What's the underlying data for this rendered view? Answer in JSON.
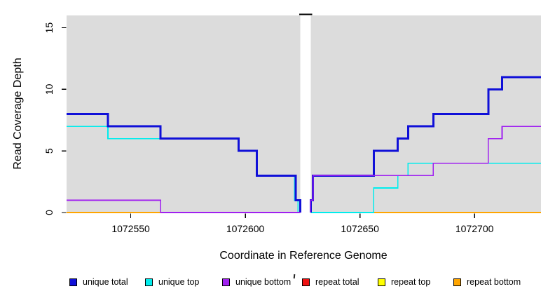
{
  "figure": {
    "x_axis_title": "Coordinate in Reference Genome",
    "y_axis_title": "Read Coverage Depth"
  },
  "chart_data": {
    "type": "line",
    "subtype": "step",
    "title": "",
    "xlabel": "Coordinate in Reference Genome",
    "ylabel": "Read Coverage Depth",
    "xlim": [
      1072522,
      1072729
    ],
    "ylim": [
      0,
      16
    ],
    "x_ticks": [
      1072550,
      1072600,
      1072650,
      1072700
    ],
    "y_ticks": [
      0,
      5,
      10,
      15
    ],
    "grid": false,
    "legend_position": "bottom",
    "plot_background": "#dcdcdc",
    "gap": {
      "x1": 1072624,
      "x2": 1072628.5,
      "marker_color": "#000000"
    },
    "draw_order": [
      "repeat total",
      "repeat top",
      "repeat bottom",
      "unique top",
      "unique total",
      "unique bottom"
    ],
    "series": [
      {
        "name": "unique total",
        "color": "#1010d8",
        "width": 3,
        "segments": [
          [
            [
              1072522,
              8
            ],
            [
              1072540,
              7
            ],
            [
              1072563,
              6
            ],
            [
              1072597,
              5
            ],
            [
              1072605,
              3
            ],
            [
              1072622,
              1
            ],
            [
              1072624,
              0
            ]
          ],
          [
            [
              1072628.5,
              0
            ],
            [
              1072628.5,
              1
            ],
            [
              1072629.5,
              3
            ],
            [
              1072656,
              5
            ],
            [
              1072666.5,
              6
            ],
            [
              1072671,
              7
            ],
            [
              1072682,
              8
            ],
            [
              1072706,
              10
            ],
            [
              1072712,
              11
            ],
            [
              1072729,
              11
            ]
          ]
        ]
      },
      {
        "name": "unique top",
        "color": "#00eded",
        "width": 1.7,
        "segments": [
          [
            [
              1072522,
              7
            ],
            [
              1072540,
              6
            ],
            [
              1072597,
              5
            ],
            [
              1072605,
              3
            ],
            [
              1072621.5,
              1
            ],
            [
              1072623,
              0
            ],
            [
              1072624,
              0
            ]
          ],
          [
            [
              1072628.5,
              0
            ],
            [
              1072656,
              2
            ],
            [
              1072666.5,
              3
            ],
            [
              1072671,
              4
            ],
            [
              1072729,
              4
            ]
          ]
        ]
      },
      {
        "name": "unique bottom",
        "color": "#a020f0",
        "width": 1.7,
        "segments": [
          [
            [
              1072522,
              1
            ],
            [
              1072563,
              0
            ],
            [
              1072624,
              0
            ]
          ],
          [
            [
              1072628.5,
              0
            ],
            [
              1072628.5,
              1
            ],
            [
              1072629.5,
              3
            ],
            [
              1072682,
              4
            ],
            [
              1072706,
              6
            ],
            [
              1072712,
              7
            ],
            [
              1072729,
              7
            ]
          ]
        ]
      },
      {
        "name": "repeat total",
        "color": "#ee1111",
        "width": 1.7,
        "segments": [
          [
            [
              1072522,
              0
            ],
            [
              1072624,
              0
            ]
          ],
          [
            [
              1072628.5,
              0
            ],
            [
              1072729,
              0
            ]
          ]
        ]
      },
      {
        "name": "repeat top",
        "color": "#ffff00",
        "width": 1.7,
        "segments": [
          [
            [
              1072522,
              0
            ],
            [
              1072624,
              0
            ]
          ],
          [
            [
              1072628.5,
              0
            ],
            [
              1072729,
              0
            ]
          ]
        ]
      },
      {
        "name": "repeat bottom",
        "color": "#ffa500",
        "width": 1.7,
        "segments": [
          [
            [
              1072522,
              0
            ],
            [
              1072624,
              0
            ]
          ],
          [
            [
              1072628.5,
              0
            ],
            [
              1072729,
              0
            ]
          ]
        ]
      }
    ],
    "legend": [
      {
        "label": "unique total",
        "color": "#1010d8"
      },
      {
        "label": "unique top",
        "color": "#00eded"
      },
      {
        "label": "unique bottom",
        "color": "#a020f0"
      },
      {
        "label": "repeat total",
        "color": "#ee1111"
      },
      {
        "label": "repeat top",
        "color": "#ffff00"
      },
      {
        "label": "repeat bottom",
        "color": "#ffa500"
      }
    ]
  }
}
